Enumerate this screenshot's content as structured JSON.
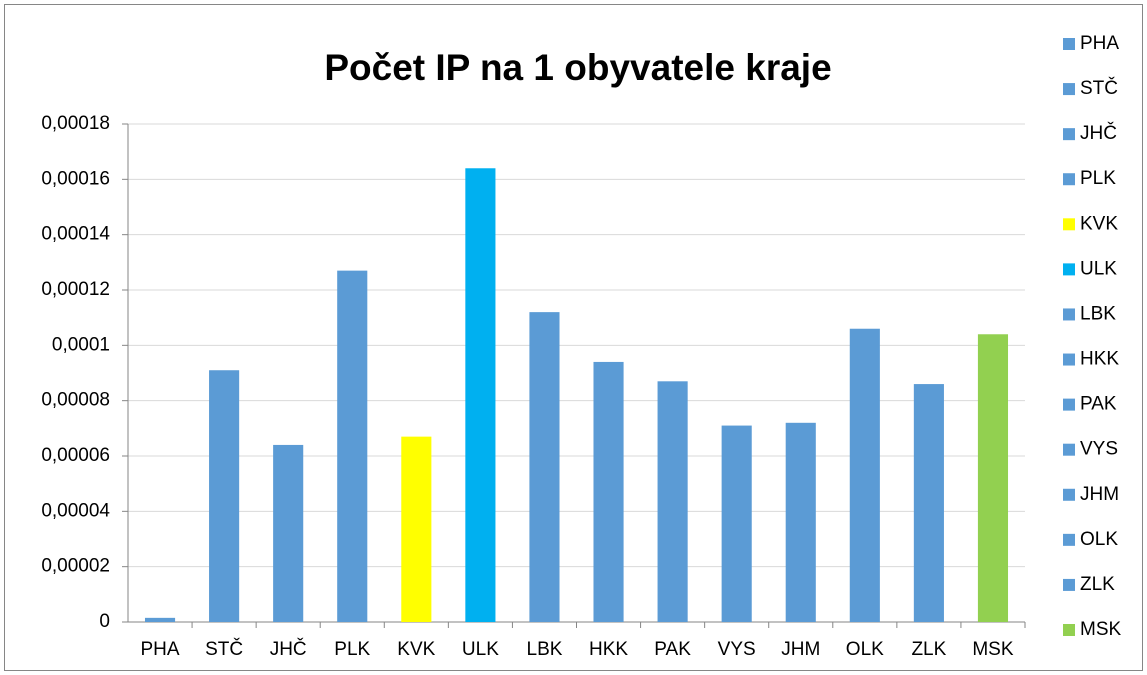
{
  "chart_data": {
    "type": "bar",
    "title": "Počet IP na 1 obyvatele kraje",
    "categories": [
      "PHA",
      "STČ",
      "JHČ",
      "PLK",
      "KVK",
      "ULK",
      "LBK",
      "HKK",
      "PAK",
      "VYS",
      "JHM",
      "OLK",
      "ZLK",
      "MSK"
    ],
    "values": [
      1.5e-06,
      9.1e-05,
      6.4e-05,
      0.000127,
      6.7e-05,
      0.000164,
      0.000112,
      9.4e-05,
      8.7e-05,
      7.1e-05,
      7.2e-05,
      0.000106,
      8.6e-05,
      0.000104
    ],
    "colors": [
      "#5b9bd5",
      "#5b9bd5",
      "#5b9bd5",
      "#5b9bd5",
      "#ffff00",
      "#00b0f0",
      "#5b9bd5",
      "#5b9bd5",
      "#5b9bd5",
      "#5b9bd5",
      "#5b9bd5",
      "#5b9bd5",
      "#5b9bd5",
      "#92d050"
    ],
    "ylim": [
      0,
      0.00018
    ],
    "yticks": [
      0,
      {
        "value": 2e-05,
        "label": "0,00002"
      },
      {
        "value": 4e-05,
        "label": "0,00004"
      },
      {
        "value": 6e-05,
        "label": "0,00006"
      },
      {
        "value": 8e-05,
        "label": "0,00008"
      },
      {
        "value": 0.0001,
        "label": "0,0001"
      },
      {
        "value": 0.00012,
        "label": "0,00012"
      },
      {
        "value": 0.00014,
        "label": "0,00014"
      },
      {
        "value": 0.00016,
        "label": "0,00016"
      },
      {
        "value": 0.00018,
        "label": "0,00018"
      }
    ],
    "grid": true,
    "legend": "right"
  }
}
